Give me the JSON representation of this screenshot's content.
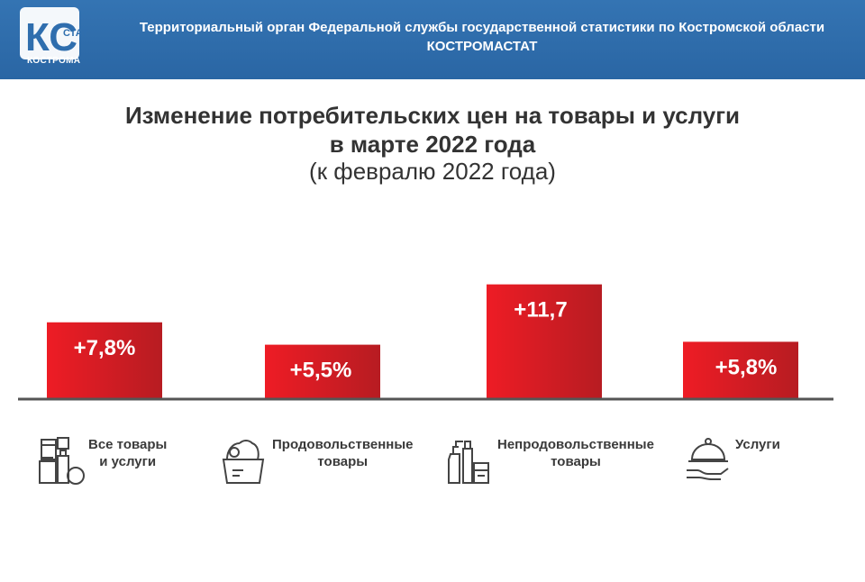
{
  "header": {
    "logo_letters": "КС",
    "logo_small": "СТАТ",
    "logo_city": "КОСТРОМА",
    "org_name": "Территориальный орган Федеральной службы государственной статистики по Костромской области",
    "org_short": "КОСТРОМАСТАТ",
    "background_color": "#2f6eae"
  },
  "title_line1": "Изменение потребительских цен на товары и услуги",
  "title_line2": "в марте 2022 года",
  "subtitle": "(к февралю 2022 года)",
  "chart_data": {
    "type": "bar",
    "categories": [
      "Все товары и услуги",
      "Продовольственные товары",
      "Непродовольственные товары",
      "Услуги"
    ],
    "values": [
      7.8,
      5.5,
      11.7,
      5.8
    ],
    "data_labels": [
      "+7,8%",
      "+5,5%",
      "+11,7",
      "+5,8%"
    ],
    "bar_color": "#e11d25",
    "ylim": [
      0,
      12
    ]
  },
  "categories": [
    {
      "line1": "Все товары",
      "line2": "и услуги",
      "icon": "groceries-icon"
    },
    {
      "line1": "Продовольственные",
      "line2": "товары",
      "icon": "food-basket-icon"
    },
    {
      "line1": "Непродовольственные",
      "line2": "товары",
      "icon": "household-goods-icon"
    },
    {
      "line1": "Услуги",
      "line2": "",
      "icon": "cloche-service-icon"
    }
  ]
}
